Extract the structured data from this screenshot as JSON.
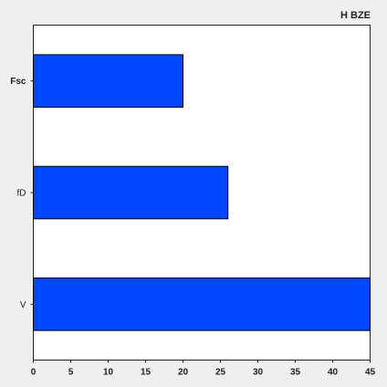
{
  "chart_data": {
    "type": "bar",
    "orientation": "horizontal",
    "title": "H BZE",
    "categories": [
      "Fsc",
      "fD",
      "V"
    ],
    "values": [
      20,
      26,
      45
    ],
    "xlim": [
      0,
      45
    ],
    "xticks": [
      0,
      5,
      10,
      15,
      20,
      25,
      30,
      35,
      40,
      45
    ],
    "xlabel": "",
    "ylabel": "",
    "grid": false,
    "legend": "none",
    "colors": {
      "bar": "#0047ff",
      "bar_edge": "#000000",
      "plot_background": "#ffffff",
      "page_background": "#efefef"
    }
  }
}
